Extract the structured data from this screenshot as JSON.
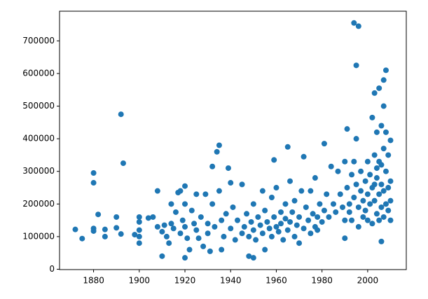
{
  "chart_data": {
    "type": "scatter",
    "color": "#1f77b4",
    "xlim": [
      1865.1,
      2016.9
    ],
    "ylim": [
      -1100,
      791000
    ],
    "xticks": [
      1880,
      1900,
      1920,
      1940,
      1960,
      1980,
      2000
    ],
    "yticks": [
      0,
      100000,
      200000,
      300000,
      400000,
      500000,
      600000,
      700000
    ],
    "x": [
      1872,
      1875,
      1880,
      1880,
      1880,
      1880,
      1882,
      1885,
      1885,
      1890,
      1890,
      1892,
      1893,
      1892,
      1898,
      1900,
      1900,
      1900,
      1900,
      1900,
      1904,
      1906,
      1908,
      1908,
      1910,
      1910,
      1911,
      1912,
      1913,
      1914,
      1914,
      1915,
      1916,
      1917,
      1918,
      1918,
      1919,
      1920,
      1920,
      1920,
      1920,
      1921,
      1922,
      1923,
      1924,
      1925,
      1925,
      1926,
      1927,
      1928,
      1929,
      1930,
      1930,
      1931,
      1932,
      1932,
      1933,
      1934,
      1935,
      1935,
      1936,
      1936,
      1937,
      1938,
      1939,
      1940,
      1940,
      1941,
      1942,
      1943,
      1945,
      1945,
      1946,
      1947,
      1948,
      1948,
      1949,
      1950,
      1950,
      1950,
      1951,
      1952,
      1953,
      1954,
      1954,
      1955,
      1955,
      1956,
      1957,
      1958,
      1958,
      1959,
      1959,
      1960,
      1960,
      1961,
      1962,
      1962,
      1963,
      1964,
      1964,
      1965,
      1965,
      1966,
      1966,
      1967,
      1968,
      1968,
      1969,
      1970,
      1970,
      1971,
      1972,
      1972,
      1973,
      1974,
      1975,
      1975,
      1976,
      1977,
      1977,
      1978,
      1978,
      1979,
      1980,
      1981,
      1981,
      1982,
      1983,
      1984,
      1985,
      1986,
      1987,
      1988,
      1989,
      1990,
      1990,
      1990,
      1991,
      1991,
      1992,
      1992,
      1993,
      1993,
      1994,
      1994,
      1994,
      1995,
      1995,
      1995,
      1996,
      1996,
      1996,
      1997,
      1997,
      1998,
      1998,
      1999,
      1999,
      2000,
      2000,
      2000,
      2001,
      2001,
      2002,
      2002,
      2002,
      2003,
      2003,
      2003,
      2004,
      2004,
      2004,
      2005,
      2005,
      2005,
      2005,
      2006,
      2006,
      2006,
      2006,
      2007,
      2007,
      2007,
      2007,
      2007,
      2008,
      2008,
      2008,
      2008,
      2009,
      2009,
      2009,
      2010,
      2010,
      2010,
      2010,
      2004,
      2006,
      2003
    ],
    "values": [
      122000,
      94000,
      295000,
      265000,
      125000,
      117000,
      168000,
      122000,
      100000,
      160000,
      127000,
      475000,
      325000,
      108000,
      106000,
      160000,
      145000,
      120000,
      100000,
      80000,
      157000,
      160000,
      240000,
      130000,
      40000,
      115000,
      135000,
      100000,
      80000,
      140000,
      200000,
      125000,
      175000,
      235000,
      240000,
      110000,
      150000,
      255000,
      35000,
      200000,
      130000,
      95000,
      60000,
      180000,
      140000,
      230000,
      120000,
      95000,
      160000,
      70000,
      230000,
      140000,
      110000,
      55000,
      315000,
      200000,
      130000,
      360000,
      380000,
      240000,
      60000,
      150000,
      100000,
      170000,
      310000,
      265000,
      125000,
      190000,
      90000,
      150000,
      260000,
      110000,
      130000,
      170000,
      40000,
      100000,
      145000,
      35000,
      120000,
      200000,
      90000,
      160000,
      135000,
      240000,
      110000,
      60000,
      180000,
      145000,
      125000,
      220000,
      100000,
      335000,
      160000,
      130000,
      250000,
      115000,
      175000,
      140000,
      90000,
      200000,
      155000,
      375000,
      120000,
      270000,
      145000,
      175000,
      100000,
      210000,
      135000,
      160000,
      80000,
      240000,
      345000,
      125000,
      190000,
      150000,
      110000,
      240000,
      170000,
      130000,
      280000,
      160000,
      120000,
      200000,
      145000,
      385000,
      180000,
      230000,
      160000,
      315000,
      200000,
      175000,
      300000,
      230000,
      190000,
      330000,
      150000,
      95000,
      430000,
      250000,
      200000,
      175000,
      290000,
      150000,
      755000,
      330000,
      220000,
      625000,
      400000,
      260000,
      745000,
      190000,
      130000,
      300000,
      240000,
      210000,
      160000,
      270000,
      180000,
      330000,
      230000,
      150000,
      290000,
      200000,
      465000,
      250000,
      140000,
      540000,
      350000,
      210000,
      420000,
      280000,
      170000,
      555000,
      330000,
      230000,
      150000,
      440000,
      260000,
      85000,
      190000,
      580000,
      500000,
      370000,
      240000,
      160000,
      610000,
      420000,
      300000,
      200000,
      350000,
      250000,
      180000,
      395000,
      270000,
      210000,
      150000,
      310000,
      320000,
      260000
    ]
  }
}
